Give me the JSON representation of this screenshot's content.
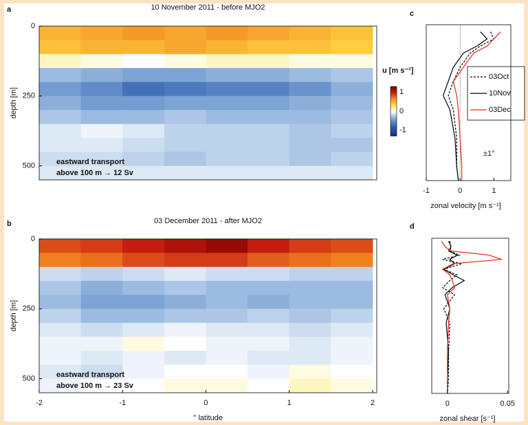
{
  "chart_data": [
    {
      "type": "heatmap",
      "panel": "a",
      "title": "10 November 2011 - before MJO2",
      "y_label": "depth [m]",
      "xlim": [
        -2,
        2.05
      ],
      "ylim": [
        0,
        550
      ],
      "yticks": [
        0,
        250,
        500
      ],
      "x_edges": [
        -2,
        -1.5,
        -1,
        -0.5,
        0,
        0.5,
        1,
        1.5,
        2
      ],
      "depth_edges": [
        0,
        50,
        100,
        150,
        200,
        250,
        300,
        350,
        400,
        450,
        500,
        550
      ],
      "z": [
        [
          0.5,
          0.55,
          0.6,
          0.55,
          0.6,
          0.55,
          0.5,
          0.45
        ],
        [
          0.45,
          0.5,
          0.5,
          0.55,
          0.5,
          0.45,
          0.45,
          0.4
        ],
        [
          0.1,
          0.05,
          0.0,
          0.05,
          0.1,
          0.1,
          0.05,
          0.05
        ],
        [
          -0.3,
          -0.35,
          -0.4,
          -0.4,
          -0.35,
          -0.35,
          -0.3,
          -0.25
        ],
        [
          -0.45,
          -0.55,
          -0.7,
          -0.65,
          -0.6,
          -0.6,
          -0.5,
          -0.35
        ],
        [
          -0.35,
          -0.45,
          -0.45,
          -0.4,
          -0.4,
          -0.4,
          -0.35,
          -0.3
        ],
        [
          -0.25,
          -0.3,
          -0.3,
          -0.25,
          -0.3,
          -0.3,
          -0.3,
          -0.25
        ],
        [
          -0.1,
          -0.05,
          -0.1,
          -0.2,
          -0.2,
          -0.2,
          -0.25,
          -0.2
        ],
        [
          -0.1,
          -0.1,
          -0.15,
          -0.2,
          -0.2,
          -0.2,
          -0.25,
          -0.25
        ],
        [
          -0.15,
          -0.15,
          -0.2,
          -0.25,
          -0.2,
          -0.2,
          -0.25,
          -0.2
        ],
        [
          -0.1,
          -0.1,
          -0.1,
          -0.1,
          -0.1,
          -0.1,
          -0.1,
          -0.1
        ]
      ],
      "annotations": [
        "eastward transport",
        "above 100 m → 12 Sv"
      ],
      "colorbar": {
        "label": "u [m s⁻¹]",
        "clim": [
          -1.3,
          1.3
        ],
        "ticks": [
          -1,
          0,
          1
        ]
      }
    },
    {
      "type": "heatmap",
      "panel": "b",
      "title": "03 December 2011 - after MJO2",
      "y_label": "depth [m]",
      "x_label": "° latitude",
      "xlim": [
        -2,
        2.05
      ],
      "xticks": [
        -2,
        -1,
        0,
        1,
        2
      ],
      "ylim": [
        0,
        550
      ],
      "yticks": [
        0,
        250,
        500
      ],
      "x_edges": [
        -2,
        -1.5,
        -1,
        -0.5,
        0,
        0.5,
        1,
        1.5,
        2
      ],
      "depth_edges": [
        0,
        50,
        100,
        150,
        200,
        250,
        300,
        350,
        400,
        450,
        500,
        550
      ],
      "z": [
        [
          0.85,
          0.9,
          1.0,
          1.1,
          1.2,
          1.0,
          0.9,
          0.85
        ],
        [
          0.7,
          0.75,
          0.85,
          0.9,
          0.9,
          0.8,
          0.75,
          0.7
        ],
        [
          -0.15,
          -0.2,
          -0.15,
          -0.1,
          -0.15,
          -0.15,
          -0.2,
          -0.2
        ],
        [
          -0.25,
          -0.35,
          -0.3,
          -0.25,
          -0.3,
          -0.3,
          -0.3,
          -0.3
        ],
        [
          -0.3,
          -0.4,
          -0.4,
          -0.35,
          -0.3,
          -0.35,
          -0.3,
          -0.3
        ],
        [
          -0.2,
          -0.3,
          -0.3,
          -0.25,
          -0.25,
          -0.2,
          -0.25,
          -0.2
        ],
        [
          -0.1,
          -0.15,
          -0.1,
          -0.05,
          -0.1,
          -0.1,
          -0.15,
          -0.1
        ],
        [
          -0.05,
          -0.05,
          0.05,
          0.0,
          -0.05,
          -0.05,
          -0.1,
          -0.05
        ],
        [
          -0.05,
          -0.1,
          -0.05,
          -0.1,
          -0.05,
          -0.1,
          -0.1,
          -0.05
        ],
        [
          -0.1,
          -0.15,
          -0.05,
          0.0,
          0.0,
          -0.05,
          0.05,
          0.0
        ],
        [
          -0.05,
          0.0,
          0.0,
          0.05,
          0.05,
          0.0,
          0.1,
          0.05
        ]
      ],
      "annotations": [
        "eastward transport",
        "above 100 m → 23 Sv"
      ]
    },
    {
      "type": "profile",
      "panel": "c",
      "x_label": "zonal velocity [m s⁻¹]",
      "xlim": [
        -1,
        1.5
      ],
      "xticks": [
        -1,
        0,
        1
      ],
      "ylim": [
        0,
        550
      ],
      "zero_line": true,
      "legend": "right",
      "depths": [
        25,
        50,
        75,
        100,
        150,
        200,
        250,
        300,
        400,
        500,
        550
      ],
      "series": [
        {
          "name": "03Oct",
          "color": "#000000",
          "dashed": true,
          "values": [
            0.9,
            1.0,
            0.6,
            0.3,
            0.0,
            -0.2,
            -0.35,
            -0.2,
            -0.1,
            -0.1,
            -0.05
          ]
        },
        {
          "name": "10Nov",
          "color": "#000000",
          "dashed": false,
          "values": [
            0.6,
            0.8,
            0.5,
            0.1,
            -0.2,
            -0.35,
            -0.5,
            -0.3,
            -0.15,
            -0.1,
            -0.05
          ]
        },
        {
          "name": "03Dec",
          "color": "#e8251b",
          "dashed": false,
          "values": [
            1.2,
            1.0,
            0.8,
            0.4,
            0.1,
            -0.2,
            -0.1,
            -0.05,
            0,
            0.05,
            0.05
          ]
        }
      ],
      "annotation": "±1°"
    },
    {
      "type": "profile",
      "panel": "d",
      "x_label": "zonal shear [s⁻¹]",
      "xlim": [
        -0.013,
        0.051
      ],
      "xticks": [
        0,
        0.05
      ],
      "ylim": [
        0,
        550
      ],
      "depths": [
        10,
        30,
        45,
        60,
        75,
        90,
        110,
        130,
        150,
        175,
        200,
        250,
        300,
        400,
        500,
        550
      ],
      "series": [
        {
          "color": "#000000",
          "dashed": true,
          "values": [
            0.002,
            0.003,
            0.002,
            0.01,
            -0.004,
            0.012,
            -0.003,
            0.008,
            0.002,
            -0.004,
            0.006,
            -0.003,
            0.002,
            0.001,
            0.001,
            0.0
          ]
        },
        {
          "color": "#000000",
          "dashed": false,
          "values": [
            0.001,
            0.003,
            0.001,
            0.008,
            0.002,
            0.006,
            -0.003,
            0.005,
            0.014,
            0.004,
            -0.002,
            0.002,
            -0.001,
            0.001,
            0.0,
            0.0
          ]
        },
        {
          "color": "#e8251b",
          "dashed": false,
          "values": [
            -0.005,
            -0.002,
            0.003,
            0.035,
            0.045,
            0.005,
            -0.004,
            0.002,
            0.004,
            0.006,
            0.0,
            0.002,
            0.001,
            0.0,
            0.0,
            0.0
          ]
        }
      ]
    }
  ]
}
